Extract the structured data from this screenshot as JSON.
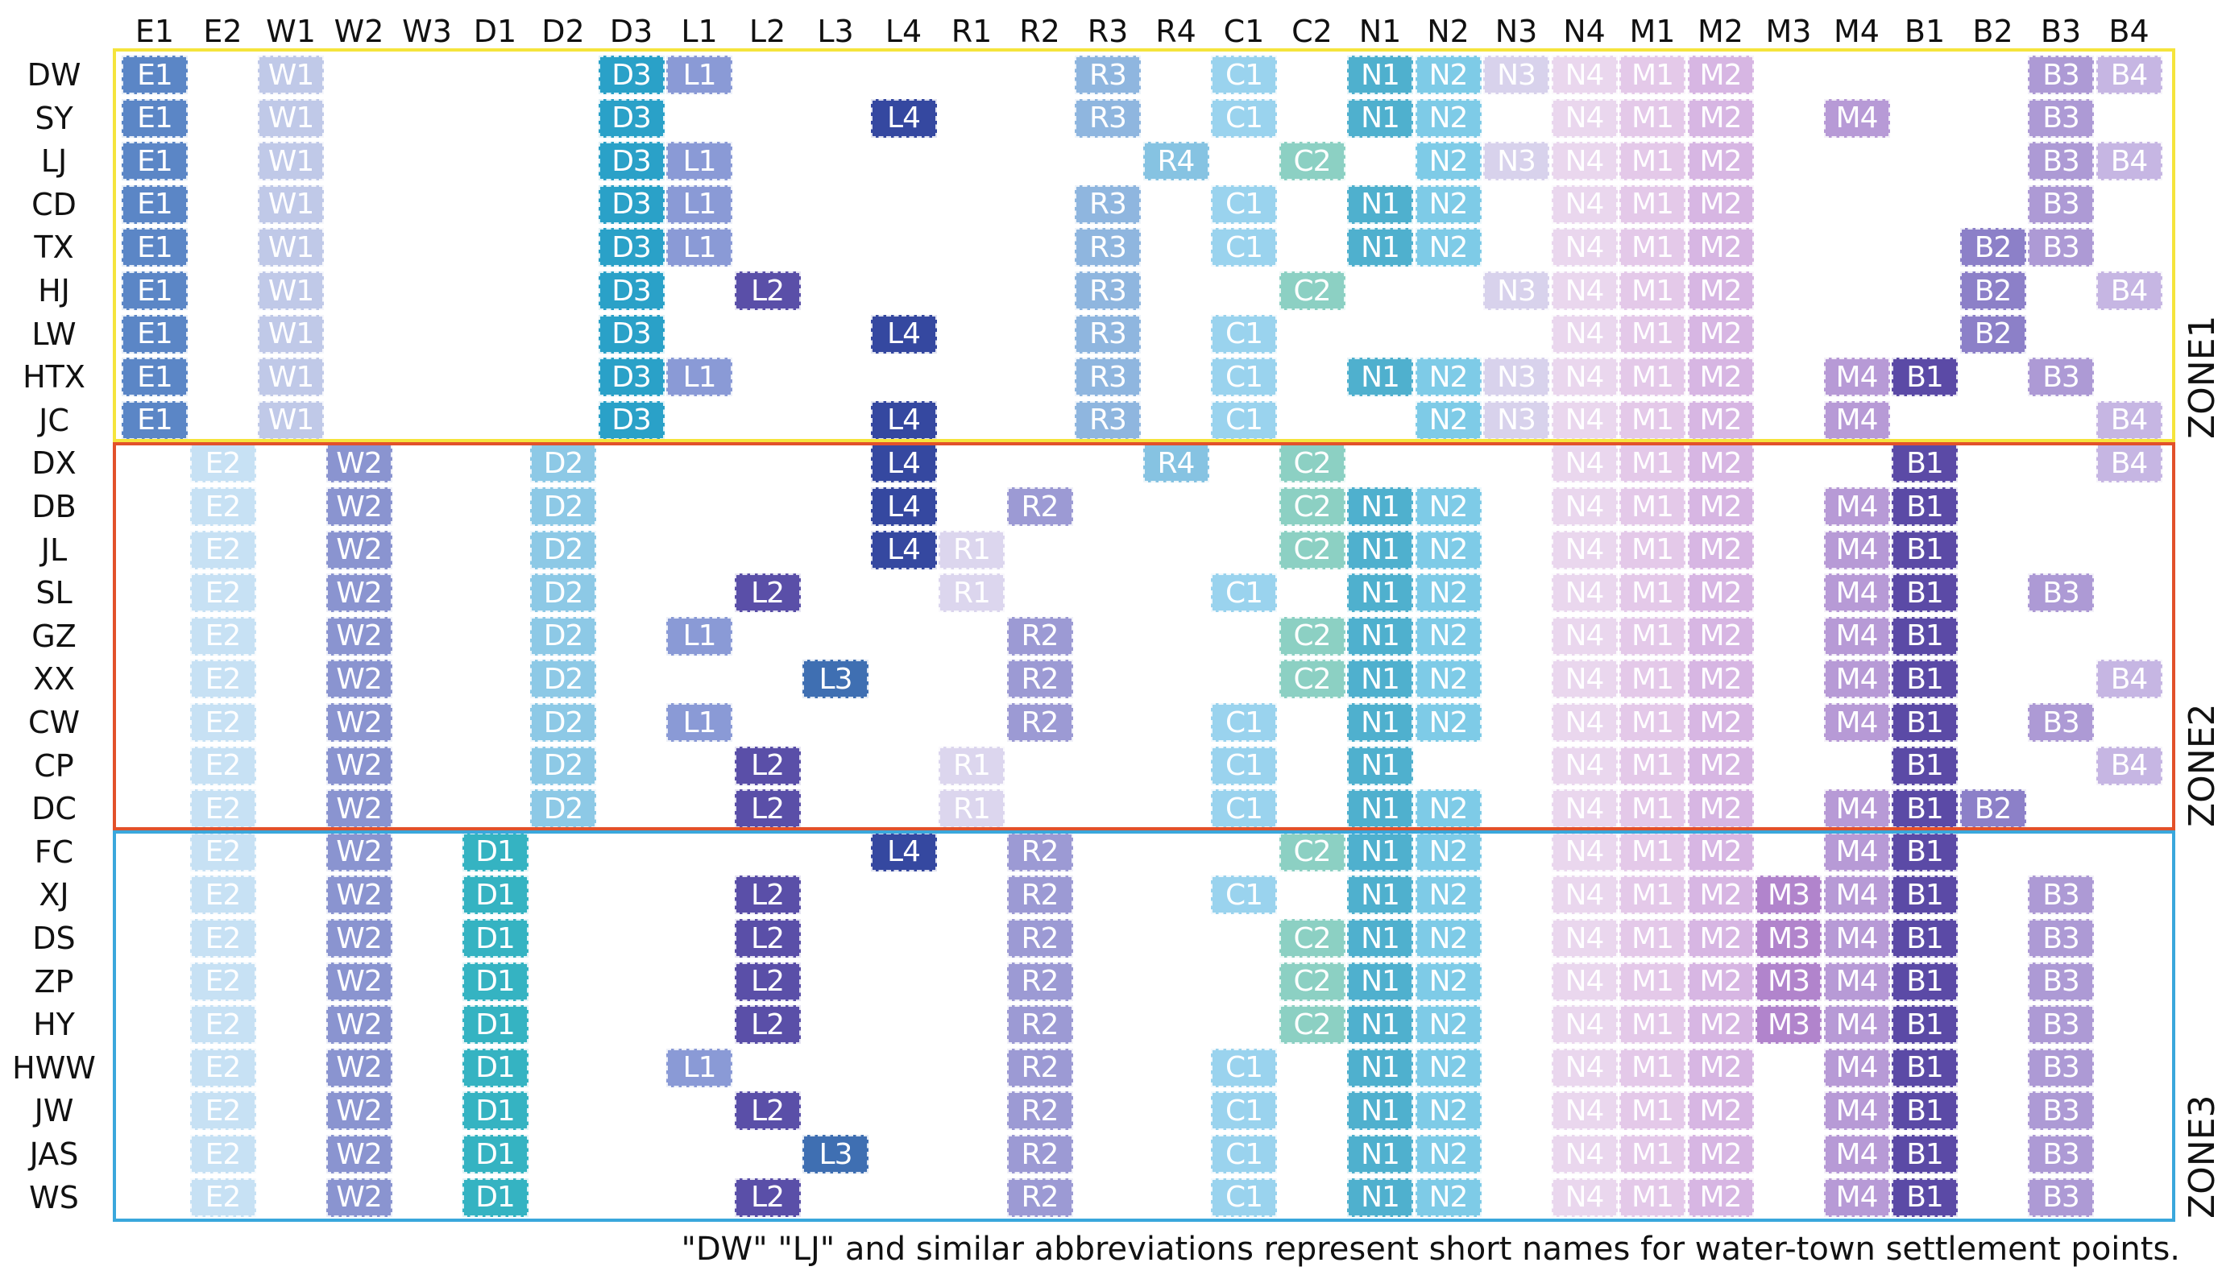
{
  "chart_data": {
    "type": "table",
    "title": "",
    "columns": [
      "E1",
      "E2",
      "W1",
      "W2",
      "W3",
      "D1",
      "D2",
      "D3",
      "L1",
      "L2",
      "L3",
      "L4",
      "R1",
      "R2",
      "R3",
      "R4",
      "C1",
      "C2",
      "N1",
      "N2",
      "N3",
      "N4",
      "M1",
      "M2",
      "M3",
      "M4",
      "B1",
      "B2",
      "B3",
      "B4"
    ],
    "zones": [
      {
        "name": "ZONE1",
        "color": "#f5e43c",
        "rows": [
          "DW",
          "SY",
          "LJ",
          "CD",
          "TX",
          "HJ",
          "LW",
          "HTX",
          "JC"
        ]
      },
      {
        "name": "ZONE2",
        "color": "#e2512a",
        "rows": [
          "DX",
          "DB",
          "JL",
          "SL",
          "GZ",
          "XX",
          "CW",
          "CP",
          "DC"
        ]
      },
      {
        "name": "ZONE3",
        "color": "#3aa7dc",
        "rows": [
          "FC",
          "XJ",
          "DS",
          "ZP",
          "HY",
          "HWW",
          "JW",
          "JAS",
          "WS"
        ]
      }
    ],
    "rows": [
      {
        "name": "DW",
        "present": [
          "E1",
          "W1",
          "D3",
          "L1",
          "R3",
          "C1",
          "N1",
          "N2",
          "N3",
          "N4",
          "M1",
          "M2",
          "B3",
          "B4"
        ]
      },
      {
        "name": "SY",
        "present": [
          "E1",
          "W1",
          "D3",
          "L4",
          "R3",
          "C1",
          "N1",
          "N2",
          "N4",
          "M1",
          "M2",
          "M4",
          "B3"
        ]
      },
      {
        "name": "LJ",
        "present": [
          "E1",
          "W1",
          "D3",
          "L1",
          "R4",
          "C2",
          "N2",
          "N3",
          "N4",
          "M1",
          "M2",
          "B3",
          "B4"
        ]
      },
      {
        "name": "CD",
        "present": [
          "E1",
          "W1",
          "D3",
          "L1",
          "R3",
          "C1",
          "N1",
          "N2",
          "N4",
          "M1",
          "M2",
          "B3"
        ]
      },
      {
        "name": "TX",
        "present": [
          "E1",
          "W1",
          "D3",
          "L1",
          "R3",
          "C1",
          "N1",
          "N2",
          "N4",
          "M1",
          "M2",
          "B2",
          "B3"
        ]
      },
      {
        "name": "HJ",
        "present": [
          "E1",
          "W1",
          "D3",
          "L2",
          "R3",
          "C2",
          "N3",
          "N4",
          "M1",
          "M2",
          "B2",
          "B4"
        ]
      },
      {
        "name": "LW",
        "present": [
          "E1",
          "W1",
          "D3",
          "L4",
          "R3",
          "C1",
          "N4",
          "M1",
          "M2",
          "B2"
        ]
      },
      {
        "name": "HTX",
        "present": [
          "E1",
          "W1",
          "D3",
          "L1",
          "R3",
          "C1",
          "N1",
          "N2",
          "N3",
          "N4",
          "M1",
          "M2",
          "M4",
          "B1",
          "B3"
        ]
      },
      {
        "name": "JC",
        "present": [
          "E1",
          "W1",
          "D3",
          "L4",
          "R3",
          "C1",
          "N2",
          "N3",
          "N4",
          "M1",
          "M2",
          "M4",
          "B4"
        ]
      },
      {
        "name": "DX",
        "present": [
          "E2",
          "W2",
          "D2",
          "L4",
          "R4",
          "C2",
          "N4",
          "M1",
          "M2",
          "B1",
          "B4"
        ]
      },
      {
        "name": "DB",
        "present": [
          "E2",
          "W2",
          "D2",
          "L4",
          "R2",
          "C2",
          "N1",
          "N2",
          "N4",
          "M1",
          "M2",
          "M4",
          "B1"
        ]
      },
      {
        "name": "JL",
        "present": [
          "E2",
          "W2",
          "D2",
          "L4",
          "R1",
          "C2",
          "N1",
          "N2",
          "N4",
          "M1",
          "M2",
          "M4",
          "B1"
        ]
      },
      {
        "name": "SL",
        "present": [
          "E2",
          "W2",
          "D2",
          "L2",
          "R1",
          "C1",
          "N1",
          "N2",
          "N4",
          "M1",
          "M2",
          "M4",
          "B1",
          "B3"
        ]
      },
      {
        "name": "GZ",
        "present": [
          "E2",
          "W2",
          "D2",
          "L1",
          "R2",
          "C2",
          "N1",
          "N2",
          "N4",
          "M1",
          "M2",
          "M4",
          "B1"
        ]
      },
      {
        "name": "XX",
        "present": [
          "E2",
          "W2",
          "D2",
          "L3",
          "R2",
          "C2",
          "N1",
          "N2",
          "N4",
          "M1",
          "M2",
          "M4",
          "B1",
          "B4"
        ]
      },
      {
        "name": "CW",
        "present": [
          "E2",
          "W2",
          "D2",
          "L1",
          "R2",
          "C1",
          "N1",
          "N2",
          "N4",
          "M1",
          "M2",
          "M4",
          "B1",
          "B3"
        ]
      },
      {
        "name": "CP",
        "present": [
          "E2",
          "W2",
          "D2",
          "L2",
          "R1",
          "C1",
          "N1",
          "N4",
          "M1",
          "M2",
          "B1",
          "B4"
        ]
      },
      {
        "name": "DC",
        "present": [
          "E2",
          "W2",
          "D2",
          "L2",
          "R1",
          "C1",
          "N1",
          "N2",
          "N4",
          "M1",
          "M2",
          "M4",
          "B1",
          "B2"
        ]
      },
      {
        "name": "FC",
        "present": [
          "E2",
          "W2",
          "D1",
          "L4",
          "R2",
          "C2",
          "N1",
          "N2",
          "N4",
          "M1",
          "M2",
          "M4",
          "B1"
        ]
      },
      {
        "name": "XJ",
        "present": [
          "E2",
          "W2",
          "D1",
          "L2",
          "R2",
          "C1",
          "N1",
          "N2",
          "N4",
          "M1",
          "M2",
          "M3",
          "M4",
          "B1",
          "B3"
        ]
      },
      {
        "name": "DS",
        "present": [
          "E2",
          "W2",
          "D1",
          "L2",
          "R2",
          "C2",
          "N1",
          "N2",
          "N4",
          "M1",
          "M2",
          "M3",
          "M4",
          "B1",
          "B3"
        ]
      },
      {
        "name": "ZP",
        "present": [
          "E2",
          "W2",
          "D1",
          "L2",
          "R2",
          "C2",
          "N1",
          "N2",
          "N4",
          "M1",
          "M2",
          "M3",
          "M4",
          "B1",
          "B3"
        ]
      },
      {
        "name": "HY",
        "present": [
          "E2",
          "W2",
          "D1",
          "L2",
          "R2",
          "C2",
          "N1",
          "N2",
          "N4",
          "M1",
          "M2",
          "M3",
          "M4",
          "B1",
          "B3"
        ]
      },
      {
        "name": "HWW",
        "present": [
          "E2",
          "W2",
          "D1",
          "L1",
          "R2",
          "C1",
          "N1",
          "N2",
          "N4",
          "M1",
          "M2",
          "M4",
          "B1",
          "B3"
        ]
      },
      {
        "name": "JW",
        "present": [
          "E2",
          "W2",
          "D1",
          "L2",
          "R2",
          "C1",
          "N1",
          "N2",
          "N4",
          "M1",
          "M2",
          "M4",
          "B1",
          "B3"
        ]
      },
      {
        "name": "JAS",
        "present": [
          "E2",
          "W2",
          "D1",
          "L3",
          "R2",
          "C1",
          "N1",
          "N2",
          "N4",
          "M1",
          "M2",
          "M4",
          "B1",
          "B3"
        ]
      },
      {
        "name": "WS",
        "present": [
          "E2",
          "W2",
          "D1",
          "L2",
          "R2",
          "C1",
          "N1",
          "N2",
          "N4",
          "M1",
          "M2",
          "M4",
          "B1",
          "B3"
        ]
      }
    ],
    "colors": {
      "E1": "#5b86c6",
      "E2": "#c7e1f4",
      "W1": "#c0c9e8",
      "W2": "#8a94d0",
      "W3": "#b7c0e6",
      "D1": "#35b3c2",
      "D2": "#8dc9e6",
      "D3": "#2aa1c8",
      "L1": "#8a9ad6",
      "L2": "#5a4fa8",
      "L3": "#3f6fb2",
      "L4": "#3548a0",
      "R1": "#dcd6ee",
      "R2": "#9c9ad4",
      "R3": "#8fb6df",
      "R4": "#86c3e2",
      "C1": "#9ad3ee",
      "C2": "#8cd0c3",
      "N1": "#4fb0ce",
      "N2": "#7ecbe7",
      "N3": "#d8d2ec",
      "N4": "#ead7ee",
      "M1": "#e4c9e9",
      "M2": "#d7b6e3",
      "M3": "#b184cc",
      "M4": "#b79ad6",
      "B1": "#5b4aa6",
      "B2": "#8c80c8",
      "B3": "#ad9ad5",
      "B4": "#c6b6e3"
    }
  },
  "footnote": "\"DW\" \"LJ\" and similar abbreviations represent short names for water-town settlement points."
}
